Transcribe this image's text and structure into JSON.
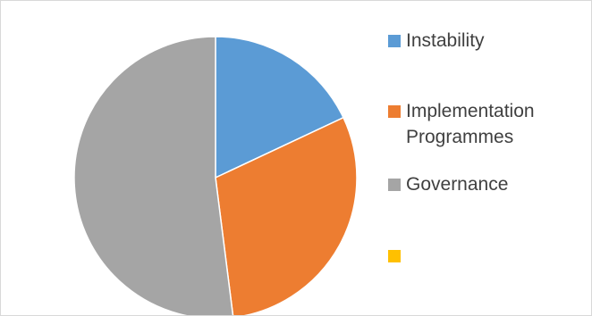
{
  "chart_data": {
    "type": "pie",
    "title": "",
    "series": [
      {
        "name": "Instability",
        "value": 18,
        "color": "#5b9bd5"
      },
      {
        "name": "Implementation\nProgrammes",
        "value": 30,
        "color": "#ed7d31"
      },
      {
        "name": "Governance",
        "value": 52,
        "color": "#a5a5a5"
      },
      {
        "name": "",
        "value": 0,
        "color": "#ffc000"
      }
    ],
    "legend_position": "right",
    "start_angle": "top, clockwise"
  }
}
